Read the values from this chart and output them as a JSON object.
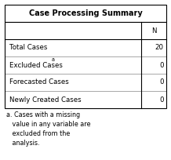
{
  "title": "Case Processing Summary",
  "col_header": "N",
  "rows": [
    {
      "label": "Total Cases",
      "superscript": "",
      "value": "20"
    },
    {
      "label": "Excluded Cases",
      "superscript": "a",
      "value": "0"
    },
    {
      "label": "Forecasted Cases",
      "superscript": "",
      "value": "0"
    },
    {
      "label": "Newly Created Cases",
      "superscript": "",
      "value": "0"
    }
  ],
  "footnote_lines": [
    "a. Cases with a missing",
    "   value in any variable are",
    "   excluded from the",
    "   analysis."
  ],
  "bg_color": "#ffffff",
  "border_color": "#000000",
  "title_fontsize": 7.0,
  "body_fontsize": 6.2,
  "footnote_fontsize": 5.8,
  "fig_width": 2.18,
  "fig_height": 2.04,
  "dpi": 100
}
